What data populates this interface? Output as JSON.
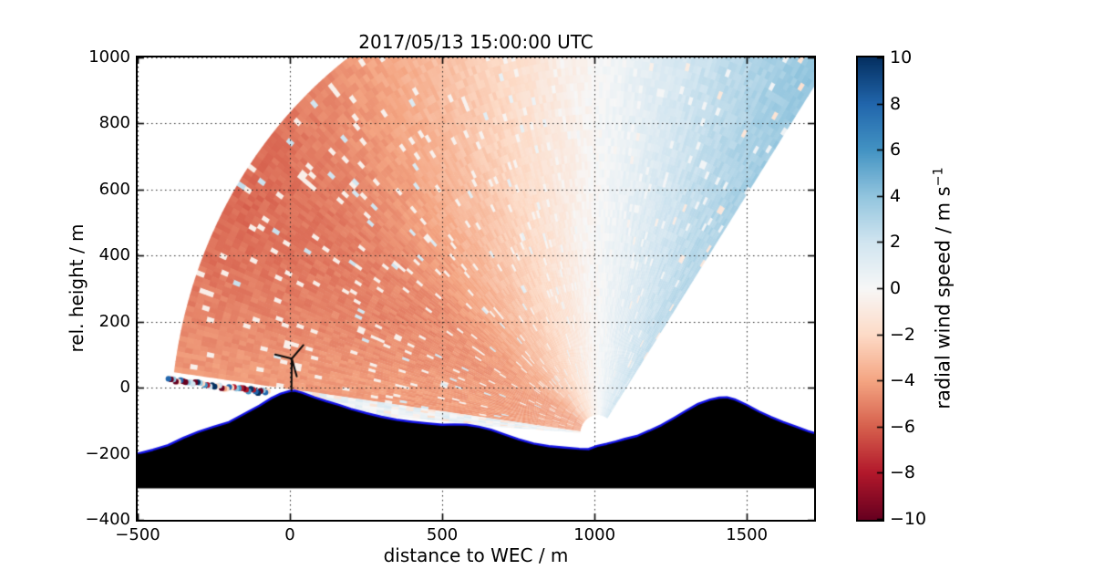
{
  "figure": {
    "title": "2017/05/13 15:00:00 UTC",
    "xlabel": "distance to WEC / m",
    "ylabel": "rel. height / m"
  },
  "colorbar": {
    "label_main": "radial wind speed / m s",
    "label_sup": "−1",
    "min": -10,
    "max": 10,
    "ticks": [
      10,
      8,
      6,
      4,
      2,
      0,
      -2,
      -4,
      -6,
      -8,
      -10
    ]
  },
  "chart_data": {
    "type": "heatmap",
    "title": "2017/05/13 15:00:00 UTC",
    "xlabel": "distance to WEC / m",
    "ylabel": "rel. height / m",
    "colorbar_label": "radial wind speed / m s⁻¹",
    "xlim": [
      -500,
      1721
    ],
    "ylim": [
      -400,
      1000
    ],
    "xticks": [
      -500,
      0,
      500,
      1000,
      1500
    ],
    "yticks": [
      1000,
      800,
      600,
      400,
      200,
      0,
      -200,
      -400
    ],
    "grid": true,
    "colormap_anchors": {
      "values": [
        -10,
        -8,
        -6,
        -4,
        -2,
        0,
        2,
        4,
        6,
        8,
        10
      ],
      "colors": [
        "#67001f",
        "#b2182b",
        "#d6604d",
        "#f4a582",
        "#fddbc7",
        "#f7f7f7",
        "#d1e5f0",
        "#92c5de",
        "#4393c3",
        "#2166ac",
        "#053061"
      ]
    },
    "scan": {
      "description": "lidar RHI fan of radial wind speed, red negative (towards) left side, blue positive right side",
      "lidar_x": 1010,
      "lidar_y": -140,
      "r_min": 70,
      "r_max": 1390,
      "angle_min_deg": 56.3,
      "angle_max_deg": 172.5,
      "blocked_angle_max_deg": 176.5,
      "beam_step_deg": 0.65,
      "gate_step_m": 24,
      "wind_u0": 4.2,
      "wind_shear_per_km": 3.2,
      "band_center_deg": 148,
      "band_width_deg": 16,
      "band_extra": 0.6
    },
    "terrain": {
      "fill": "#000000",
      "stroke": "#1414e6",
      "base": -305,
      "points": [
        [
          -500,
          -200
        ],
        [
          -450,
          -188
        ],
        [
          -400,
          -174
        ],
        [
          -350,
          -152
        ],
        [
          -300,
          -133
        ],
        [
          -250,
          -118
        ],
        [
          -200,
          -104
        ],
        [
          -150,
          -79
        ],
        [
          -100,
          -54
        ],
        [
          -60,
          -31
        ],
        [
          -30,
          -18
        ],
        [
          0,
          -10
        ],
        [
          15,
          -9
        ],
        [
          40,
          -15
        ],
        [
          80,
          -29
        ],
        [
          120,
          -41
        ],
        [
          160,
          -52
        ],
        [
          200,
          -64
        ],
        [
          250,
          -77
        ],
        [
          300,
          -88
        ],
        [
          350,
          -97
        ],
        [
          400,
          -103
        ],
        [
          450,
          -108
        ],
        [
          500,
          -112
        ],
        [
          540,
          -111
        ],
        [
          580,
          -112
        ],
        [
          620,
          -118
        ],
        [
          660,
          -127
        ],
        [
          700,
          -140
        ],
        [
          750,
          -156
        ],
        [
          800,
          -169
        ],
        [
          850,
          -177
        ],
        [
          900,
          -181
        ],
        [
          950,
          -185
        ],
        [
          980,
          -186
        ],
        [
          1010,
          -176
        ],
        [
          1040,
          -170
        ],
        [
          1070,
          -163
        ],
        [
          1100,
          -155
        ],
        [
          1140,
          -146
        ],
        [
          1180,
          -130
        ],
        [
          1220,
          -113
        ],
        [
          1260,
          -92
        ],
        [
          1300,
          -70
        ],
        [
          1340,
          -49
        ],
        [
          1380,
          -36
        ],
        [
          1410,
          -30
        ],
        [
          1435,
          -29
        ],
        [
          1460,
          -35
        ],
        [
          1500,
          -52
        ],
        [
          1540,
          -72
        ],
        [
          1580,
          -89
        ],
        [
          1620,
          -104
        ],
        [
          1660,
          -117
        ],
        [
          1700,
          -131
        ],
        [
          1721,
          -137
        ]
      ]
    },
    "turbine": {
      "x": 5,
      "base_y": -9,
      "hub_height": 97,
      "blade_length": 56,
      "blade_angles_deg": [
        47,
        167,
        287
      ],
      "color": "#0a0a0a"
    },
    "noise_dots": {
      "angle_deg": 173.4,
      "r_start": 1090,
      "r_end": 1418,
      "count": 42,
      "radius_px": 3.2,
      "palette": [
        "#053061",
        "#053061",
        "#053061",
        "#2166ac",
        "#2166ac",
        "#4393c3",
        "#4393c3",
        "#67001f",
        "#67001f",
        "#67001f",
        "#b2182b",
        "#b2182b",
        "#d6604d",
        "#f4a582",
        "#fddbc7",
        "#d1e5f0",
        "#92c5de"
      ]
    }
  }
}
